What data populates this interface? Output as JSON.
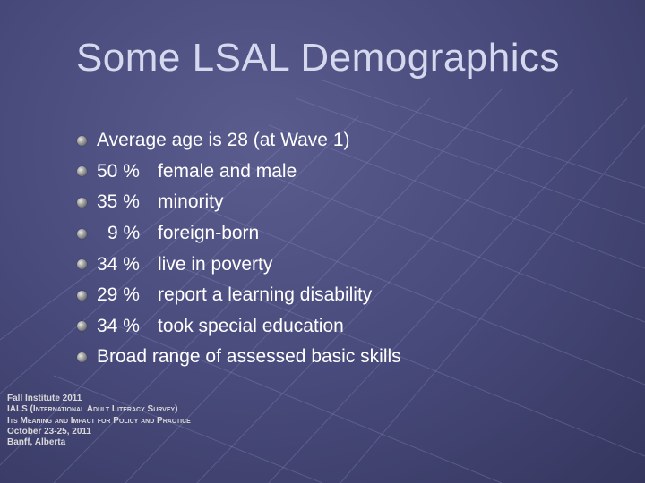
{
  "slide": {
    "title": "Some LSAL Demographics",
    "bullets": [
      {
        "text": "Average age is 28 (at Wave 1)"
      },
      {
        "pct": "50 %",
        "text": "female and male"
      },
      {
        "pct": "35 %",
        "text": "minority"
      },
      {
        "pct": "9 %",
        "text": "foreign-born"
      },
      {
        "pct": "34 %",
        "text": "live in poverty"
      },
      {
        "pct": "29 %",
        "text": "report a learning disability"
      },
      {
        "pct": "34 %",
        "text": "took special education"
      },
      {
        "text": "Broad range of assessed basic skills"
      }
    ],
    "footer": [
      "Fall Institute 2011",
      "IALS (International Adult Literacy Survey)",
      "Its Meaning and Impact for Policy and Practice",
      "October 23-25, 2011",
      "Banff, Alberta"
    ],
    "colors": {
      "background": "#4a4c7e",
      "title": "#d6d8ee",
      "text": "#ffffff"
    }
  }
}
